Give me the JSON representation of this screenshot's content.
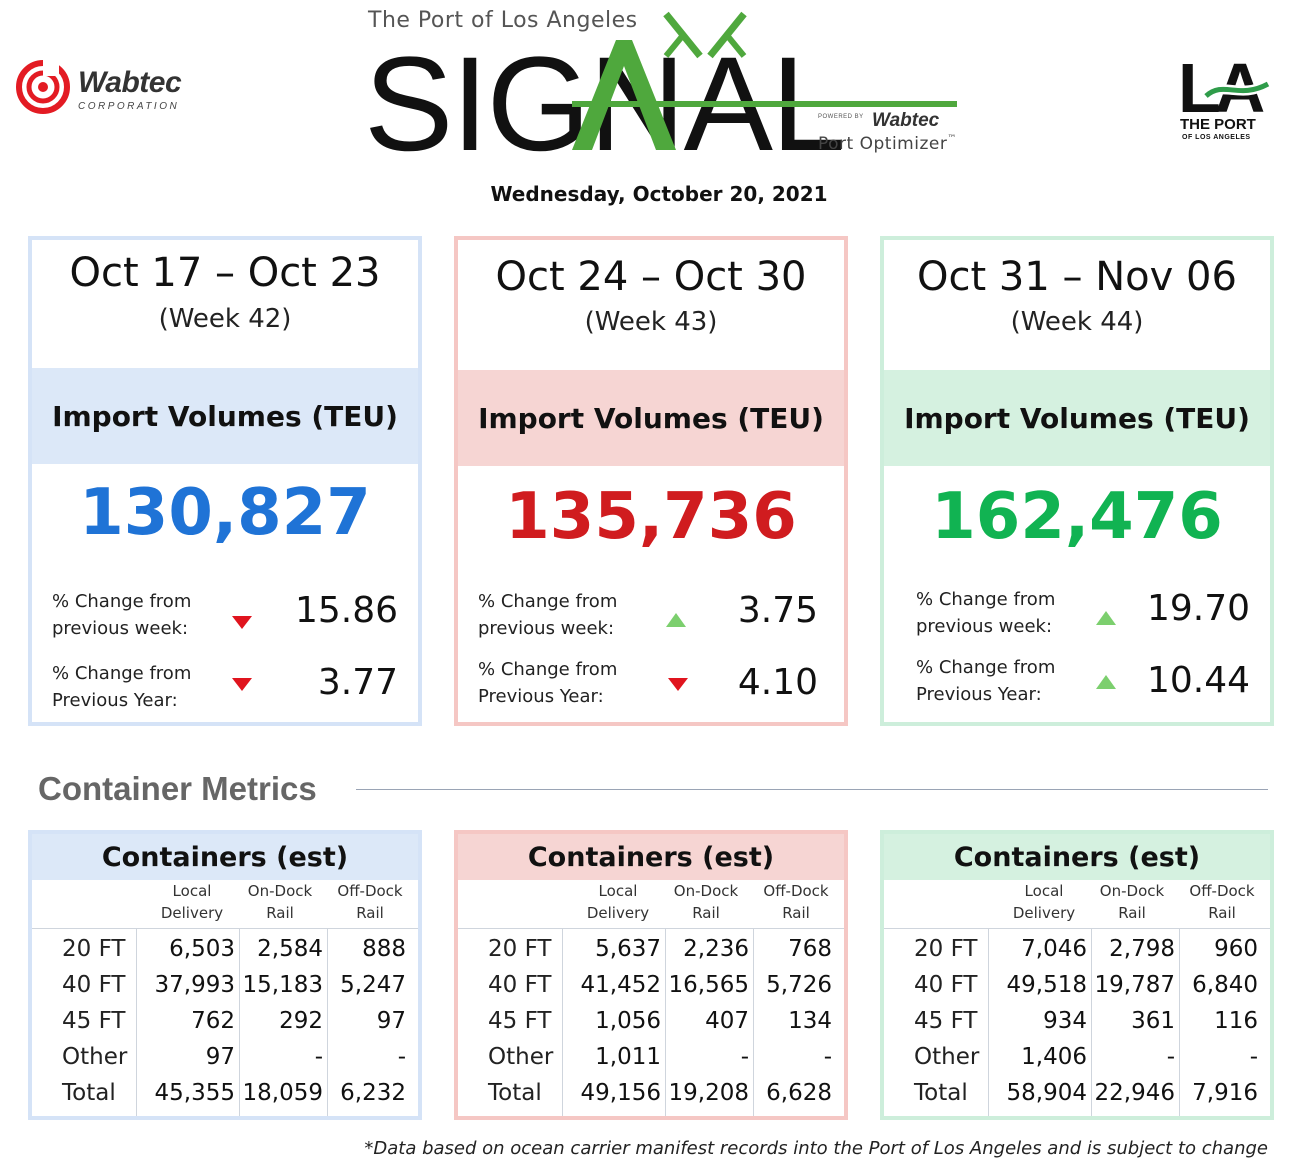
{
  "header": {
    "brand_left": "Wabtec",
    "brand_left_sub": "CORPORATION",
    "signal_sub": "The Port of Los Angeles",
    "signal_title": "SIGNAL",
    "powered_by": "POWERED BY",
    "powered_brand": "Wabtec",
    "product": "Port Optimizer",
    "trademark": "™",
    "la_mark": "LA",
    "la_port": "THE PORT",
    "la_port_sub": "OF LOS ANGELES",
    "date": "Wednesday, October 20, 2021"
  },
  "colors": {
    "blue": "#1f73d6",
    "red": "#d01c1f",
    "green": "#11b352",
    "arrow_up": "#7ccf6e",
    "arrow_down": "#e0141e",
    "signal_green": "#4fa83d"
  },
  "weeks": [
    {
      "dates": "Oct 17 – Oct 23",
      "week": "(Week 42)",
      "band_label": "Import Volumes (TEU)",
      "volume": "130,827",
      "wk_label_1": "% Change from",
      "wk_label_2": "previous week:",
      "wk_direction": "down",
      "wk_value": "15.86",
      "yr_label_1": "% Change from",
      "yr_label_2": "Previous Year:",
      "yr_direction": "down",
      "yr_value": "3.77"
    },
    {
      "dates": "Oct 24 – Oct 30",
      "week": "(Week 43)",
      "band_label": "Import Volumes (TEU)",
      "volume": "135,736",
      "wk_label_1": "% Change from",
      "wk_label_2": "previous week:",
      "wk_direction": "up",
      "wk_value": "3.75",
      "yr_label_1": "% Change from",
      "yr_label_2": "Previous Year:",
      "yr_direction": "down",
      "yr_value": "4.10"
    },
    {
      "dates": "Oct 31 – Nov 06",
      "week": "(Week 44)",
      "band_label": "Import Volumes (TEU)",
      "volume": "162,476",
      "wk_label_1": "% Change from",
      "wk_label_2": "previous week:",
      "wk_direction": "up",
      "wk_value": "19.70",
      "yr_label_1": "% Change from",
      "yr_label_2": "Previous Year:",
      "yr_direction": "up",
      "yr_value": "10.44"
    }
  ],
  "metrics": {
    "title": "Container Metrics",
    "columns": [
      {
        "l1": "Local",
        "l2": "Delivery"
      },
      {
        "l1": "On-Dock",
        "l2": "Rail"
      },
      {
        "l1": "Off-Dock",
        "l2": "Rail"
      }
    ],
    "row_labels": [
      "20 FT",
      "40 FT",
      "45 FT",
      "Other",
      "Total"
    ],
    "tables": [
      {
        "title": "Containers (est)",
        "rows": [
          [
            "6,503",
            "2,584",
            "888"
          ],
          [
            "37,993",
            "15,183",
            "5,247"
          ],
          [
            "762",
            "292",
            "97"
          ],
          [
            "97",
            "-",
            "-"
          ],
          [
            "45,355",
            "18,059",
            "6,232"
          ]
        ]
      },
      {
        "title": "Containers (est)",
        "rows": [
          [
            "5,637",
            "2,236",
            "768"
          ],
          [
            "41,452",
            "16,565",
            "5,726"
          ],
          [
            "1,056",
            "407",
            "134"
          ],
          [
            "1,011",
            "-",
            "-"
          ],
          [
            "49,156",
            "19,208",
            "6,628"
          ]
        ]
      },
      {
        "title": "Containers (est)",
        "rows": [
          [
            "7,046",
            "2,798",
            "960"
          ],
          [
            "49,518",
            "19,787",
            "6,840"
          ],
          [
            "934",
            "361",
            "116"
          ],
          [
            "1,406",
            "-",
            "-"
          ],
          [
            "58,904",
            "22,946",
            "7,916"
          ]
        ]
      }
    ]
  },
  "footnote": "*Data based on ocean carrier manifest records into the Port of Los Angeles and is subject to change"
}
